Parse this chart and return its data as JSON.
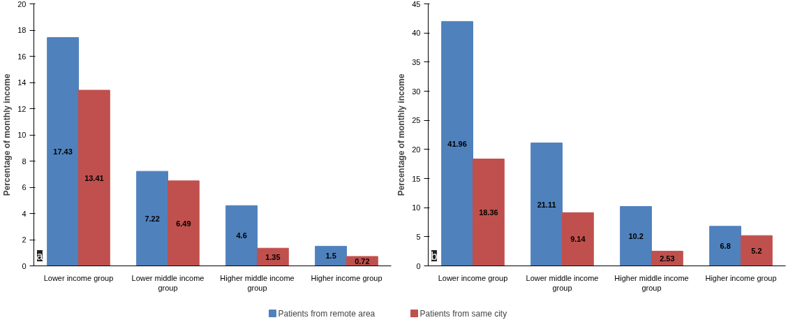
{
  "chart_data": [
    {
      "type": "bar",
      "ylabel": "Percentage of monthly income",
      "categories": [
        "Lower income group",
        "Lower middle income group",
        "Higher middle income group",
        "Higher income group"
      ],
      "series": [
        {
          "name": "Patients from remote area",
          "color": "#4f81bd",
          "values": [
            17.43,
            7.22,
            4.6,
            1.5
          ]
        },
        {
          "name": "Patients from same city",
          "color": "#c0504d",
          "values": [
            13.41,
            6.49,
            1.35,
            0.72
          ]
        }
      ],
      "ylim": [
        0,
        20
      ],
      "yticks": [
        0,
        2,
        4,
        6,
        8,
        10,
        12,
        14,
        16,
        18,
        20
      ],
      "data_labels": true,
      "grid": false,
      "legend": "bottom",
      "annotations": [
        "a"
      ]
    },
    {
      "type": "bar",
      "ylabel": "Percentage of monthly income",
      "categories": [
        "Lower income group",
        "Lower middle income group",
        "Higher middle income group",
        "Higher income group"
      ],
      "series": [
        {
          "name": "Patients from remote area",
          "color": "#4f81bd",
          "values": [
            41.96,
            21.11,
            10.2,
            6.8
          ]
        },
        {
          "name": "Patients from same city",
          "color": "#c0504d",
          "values": [
            18.36,
            9.14,
            2.53,
            5.2
          ]
        }
      ],
      "ylim": [
        0,
        45
      ],
      "yticks": [
        0,
        5,
        10,
        15,
        20,
        25,
        30,
        35,
        40,
        45
      ],
      "data_labels": true,
      "grid": false,
      "legend": "bottom",
      "annotations": [
        "b"
      ]
    }
  ]
}
